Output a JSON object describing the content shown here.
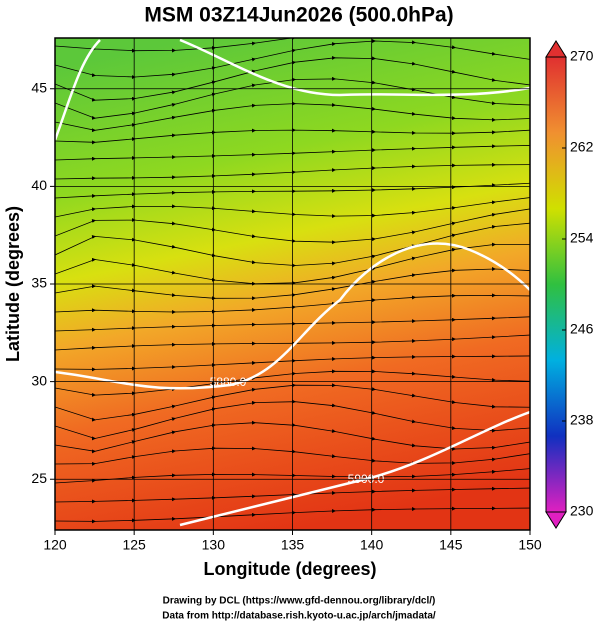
{
  "chart_data": {
    "type": "map",
    "title": "MSM 03Z14Jun2026 (500.0hPa)",
    "x_label": "Longitude (degrees)",
    "y_label": "Latitude  (degrees)",
    "xlim": [
      120,
      150
    ],
    "xticks": [
      120,
      125,
      130,
      135,
      140,
      145,
      150
    ],
    "ylim": [
      22.4,
      47.6
    ],
    "yticks": [
      25,
      30,
      35,
      40,
      45
    ],
    "grid": true,
    "colorbar": {
      "lim": [
        230,
        270
      ],
      "ticks": [
        230,
        238,
        246,
        254,
        262,
        270
      ],
      "colors": [
        "#e020c0",
        "#1030c0",
        "#00b0e0",
        "#30c040",
        "#d0e000",
        "#f09030",
        "#e03030"
      ]
    },
    "annotations": [
      "5900.0",
      "5880.0"
    ],
    "footer": [
      "Drawing by DCL (https://www.gfd-dennou.org/library/dcl/)",
      "Data from http://database.rish.kyoto-u.ac.jp/arch/jmadata/"
    ]
  }
}
